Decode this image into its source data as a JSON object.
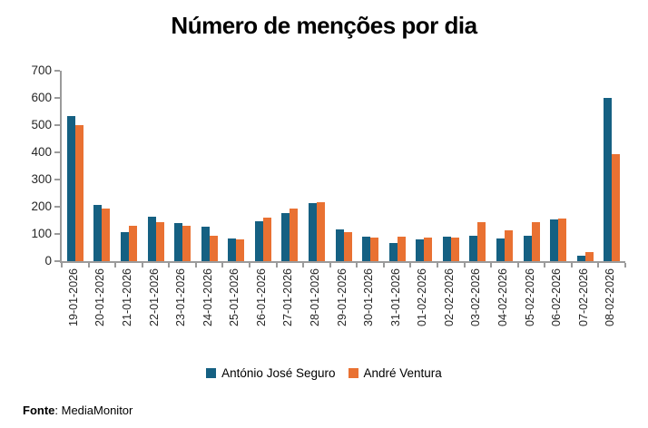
{
  "title": "Número de menções por dia",
  "footer": {
    "source_bold": "Fonte",
    "source_rest": ": MediaMonitor"
  },
  "axis_color": "#9b9b9b",
  "chart_data": {
    "type": "bar",
    "title": "Número de menções por dia",
    "xlabel": "",
    "ylabel": "",
    "ylim": [
      0,
      700
    ],
    "yticks": [
      0,
      100,
      200,
      300,
      400,
      500,
      600,
      700
    ],
    "grid": false,
    "legend_position": "bottom",
    "categories": [
      "19-01-2026",
      "20-01-2026",
      "21-01-2026",
      "22-01-2026",
      "23-01-2026",
      "24-01-2026",
      "25-01-2026",
      "26-01-2026",
      "27-01-2026",
      "28-01-2026",
      "29-01-2026",
      "30-01-2026",
      "31-01-2026",
      "01-02-2026",
      "02-02-2026",
      "03-02-2026",
      "04-02-2026",
      "05-02-2026",
      "06-02-2026",
      "07-02-2026",
      "08-02-2026"
    ],
    "series": [
      {
        "name": "António José Seguro",
        "color": "#156082",
        "values": [
          532,
          207,
          108,
          165,
          139,
          126,
          82,
          148,
          178,
          215,
          116,
          90,
          68,
          81,
          90,
          95,
          82,
          93,
          153,
          19,
          601
        ]
      },
      {
        "name": "André Ventura",
        "color": "#E97132",
        "values": [
          500,
          193,
          130,
          143,
          131,
          93,
          79,
          159,
          192,
          216,
          107,
          87,
          90,
          87,
          86,
          145,
          112,
          145,
          157,
          32,
          395
        ]
      }
    ]
  }
}
